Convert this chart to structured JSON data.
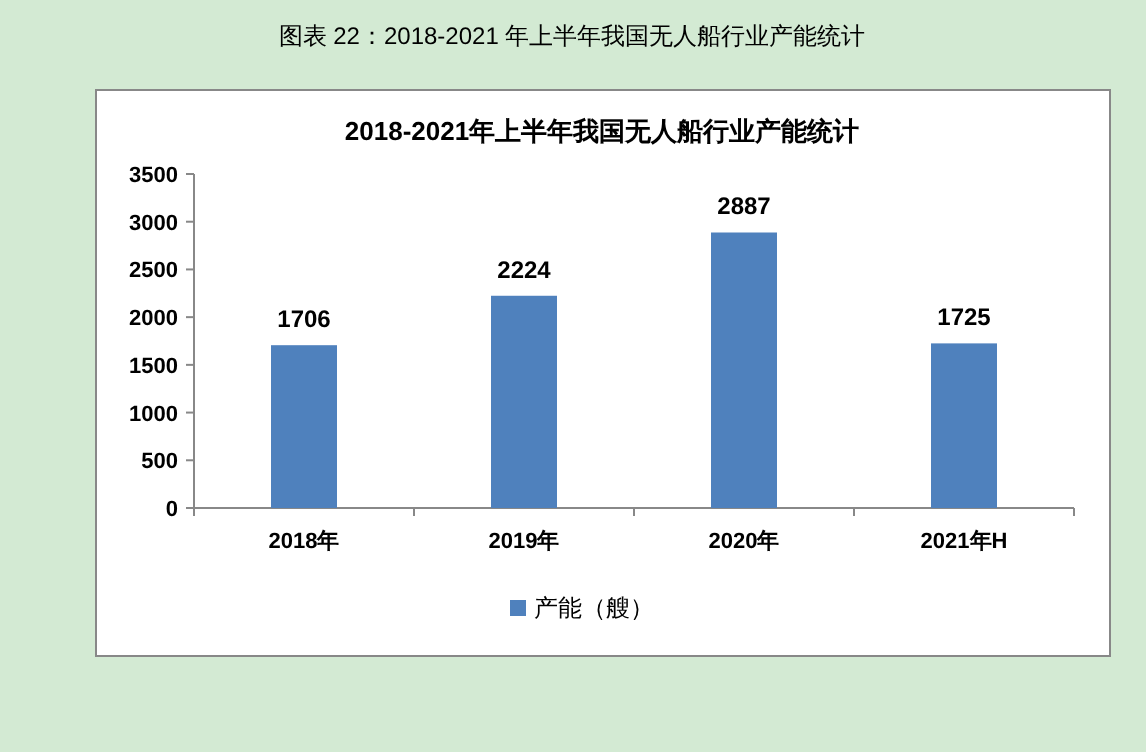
{
  "chart_data": {
    "type": "bar",
    "title": "2018-2021年上半年我国无人船行业产能统计",
    "annotations": [
      "图表  22：2018-2021 年上半年我国无人船行业产能统计"
    ],
    "categories": [
      "2018年",
      "2019年",
      "2020年",
      "2021年H"
    ],
    "series": [
      {
        "name": "产能（艘）",
        "color": "#4f81bd",
        "values": [
          1706,
          2224,
          2887,
          1725
        ]
      }
    ],
    "ylim": [
      0,
      3500
    ],
    "yticks": [
      0,
      500,
      1000,
      1500,
      2000,
      2500,
      3000,
      3500
    ],
    "data_labels": true,
    "legend": "bottom",
    "grid": false
  }
}
